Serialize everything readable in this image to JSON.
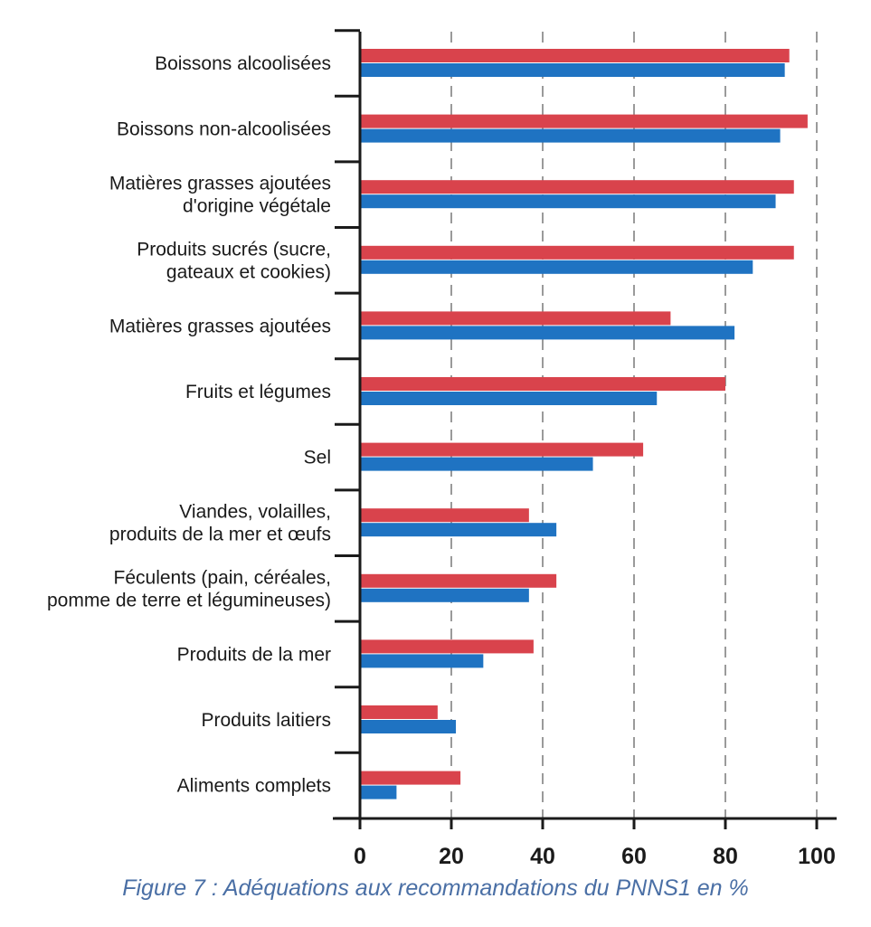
{
  "caption": "Figure 7 : Adéquations aux recommandations du PNNS1 en %",
  "colors": {
    "series_red": "#d9434c",
    "series_blue": "#1f73c2",
    "axis": "#1a1a1a",
    "grid": "#9a9a9a"
  },
  "chart_data": {
    "type": "bar",
    "orientation": "horizontal",
    "categories": [
      [
        "Boissons alcoolisées"
      ],
      [
        "Boissons non-alcoolisées"
      ],
      [
        "Matières grasses ajoutées",
        "d'origine végétale"
      ],
      [
        "Produits sucrés (sucre,",
        "gateaux et cookies)"
      ],
      [
        "Matières grasses ajoutées"
      ],
      [
        "Fruits et légumes"
      ],
      [
        "Sel"
      ],
      [
        "Viandes, volailles,",
        "produits de la mer et œufs"
      ],
      [
        "Féculents (pain, céréales,",
        "pomme de terre et légumineuses)"
      ],
      [
        "Produits de la mer"
      ],
      [
        "Produits laitiers"
      ],
      [
        "Aliments complets"
      ]
    ],
    "series": [
      {
        "color": "#d9434c",
        "values": [
          94,
          98,
          95,
          95,
          68,
          80,
          62,
          37,
          43,
          38,
          17,
          22
        ]
      },
      {
        "color": "#1f73c2",
        "values": [
          93,
          92,
          91,
          86,
          82,
          65,
          51,
          43,
          37,
          27,
          21,
          8
        ]
      }
    ],
    "xlim": [
      0,
      100
    ],
    "xticks": [
      "0",
      "20",
      "40",
      "60",
      "80",
      "100"
    ],
    "grid": "vertical dashed"
  }
}
